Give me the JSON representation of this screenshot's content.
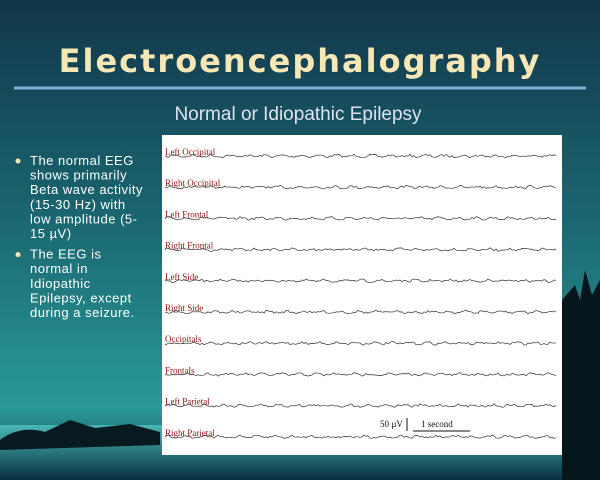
{
  "slide": {
    "title": "Electroencephalography",
    "subtitle": "Normal or Idiopathic Epilepsy",
    "bullets": [
      [
        "The normal EEG",
        "shows primarily",
        "Beta wave activity",
        "(15-30 Hz) with",
        "low amplitude (5-",
        "15 µV)"
      ],
      [
        "The EEG is",
        "normal in",
        "Idiopathic",
        "Epilepsy, except",
        "during a seizure."
      ]
    ],
    "eeg": {
      "channels": [
        "Left Occipital",
        "Right Occipital",
        "Left Frontal",
        "Right Frontal",
        "Left Side",
        "Right Side",
        "Occipitals",
        "Frontals",
        "Left Parietal",
        "Right Parietal"
      ],
      "amplitude_scale": "50 µV",
      "time_scale": "1 second"
    }
  }
}
